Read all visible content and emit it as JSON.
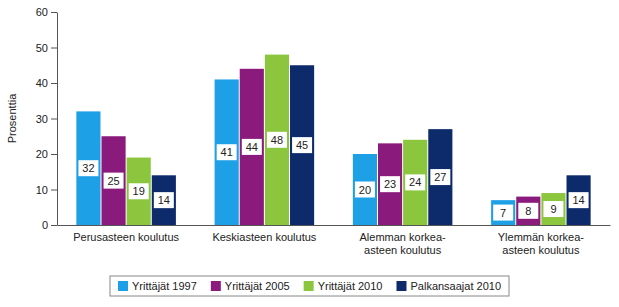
{
  "chart_data": {
    "type": "bar",
    "y_label": "Prosenttia",
    "categories": [
      "Perusasteen koulutus",
      "Keskiasteen koulutus",
      "Alemman korkea-\nasteen koulutus",
      "Ylemmän korkea-\nasteen koulutus"
    ],
    "series": [
      {
        "name": "Yrittäjät 1997",
        "color": "#1ea0e6",
        "values": [
          32,
          41,
          20,
          7
        ]
      },
      {
        "name": "Yrittäjät 2005",
        "color": "#8b1a7d",
        "values": [
          25,
          44,
          23,
          8
        ]
      },
      {
        "name": "Yrittäjät 2010",
        "color": "#8cc63f",
        "values": [
          19,
          48,
          24,
          9
        ]
      },
      {
        "name": "Palkansaajat 2010",
        "color": "#0d2a6b",
        "values": [
          14,
          45,
          27,
          14
        ]
      }
    ],
    "ylim": [
      0,
      60
    ],
    "yticks": [
      0,
      10,
      20,
      30,
      40,
      50,
      60
    ],
    "grid": false,
    "data_labels": true,
    "legend": "bottom"
  }
}
